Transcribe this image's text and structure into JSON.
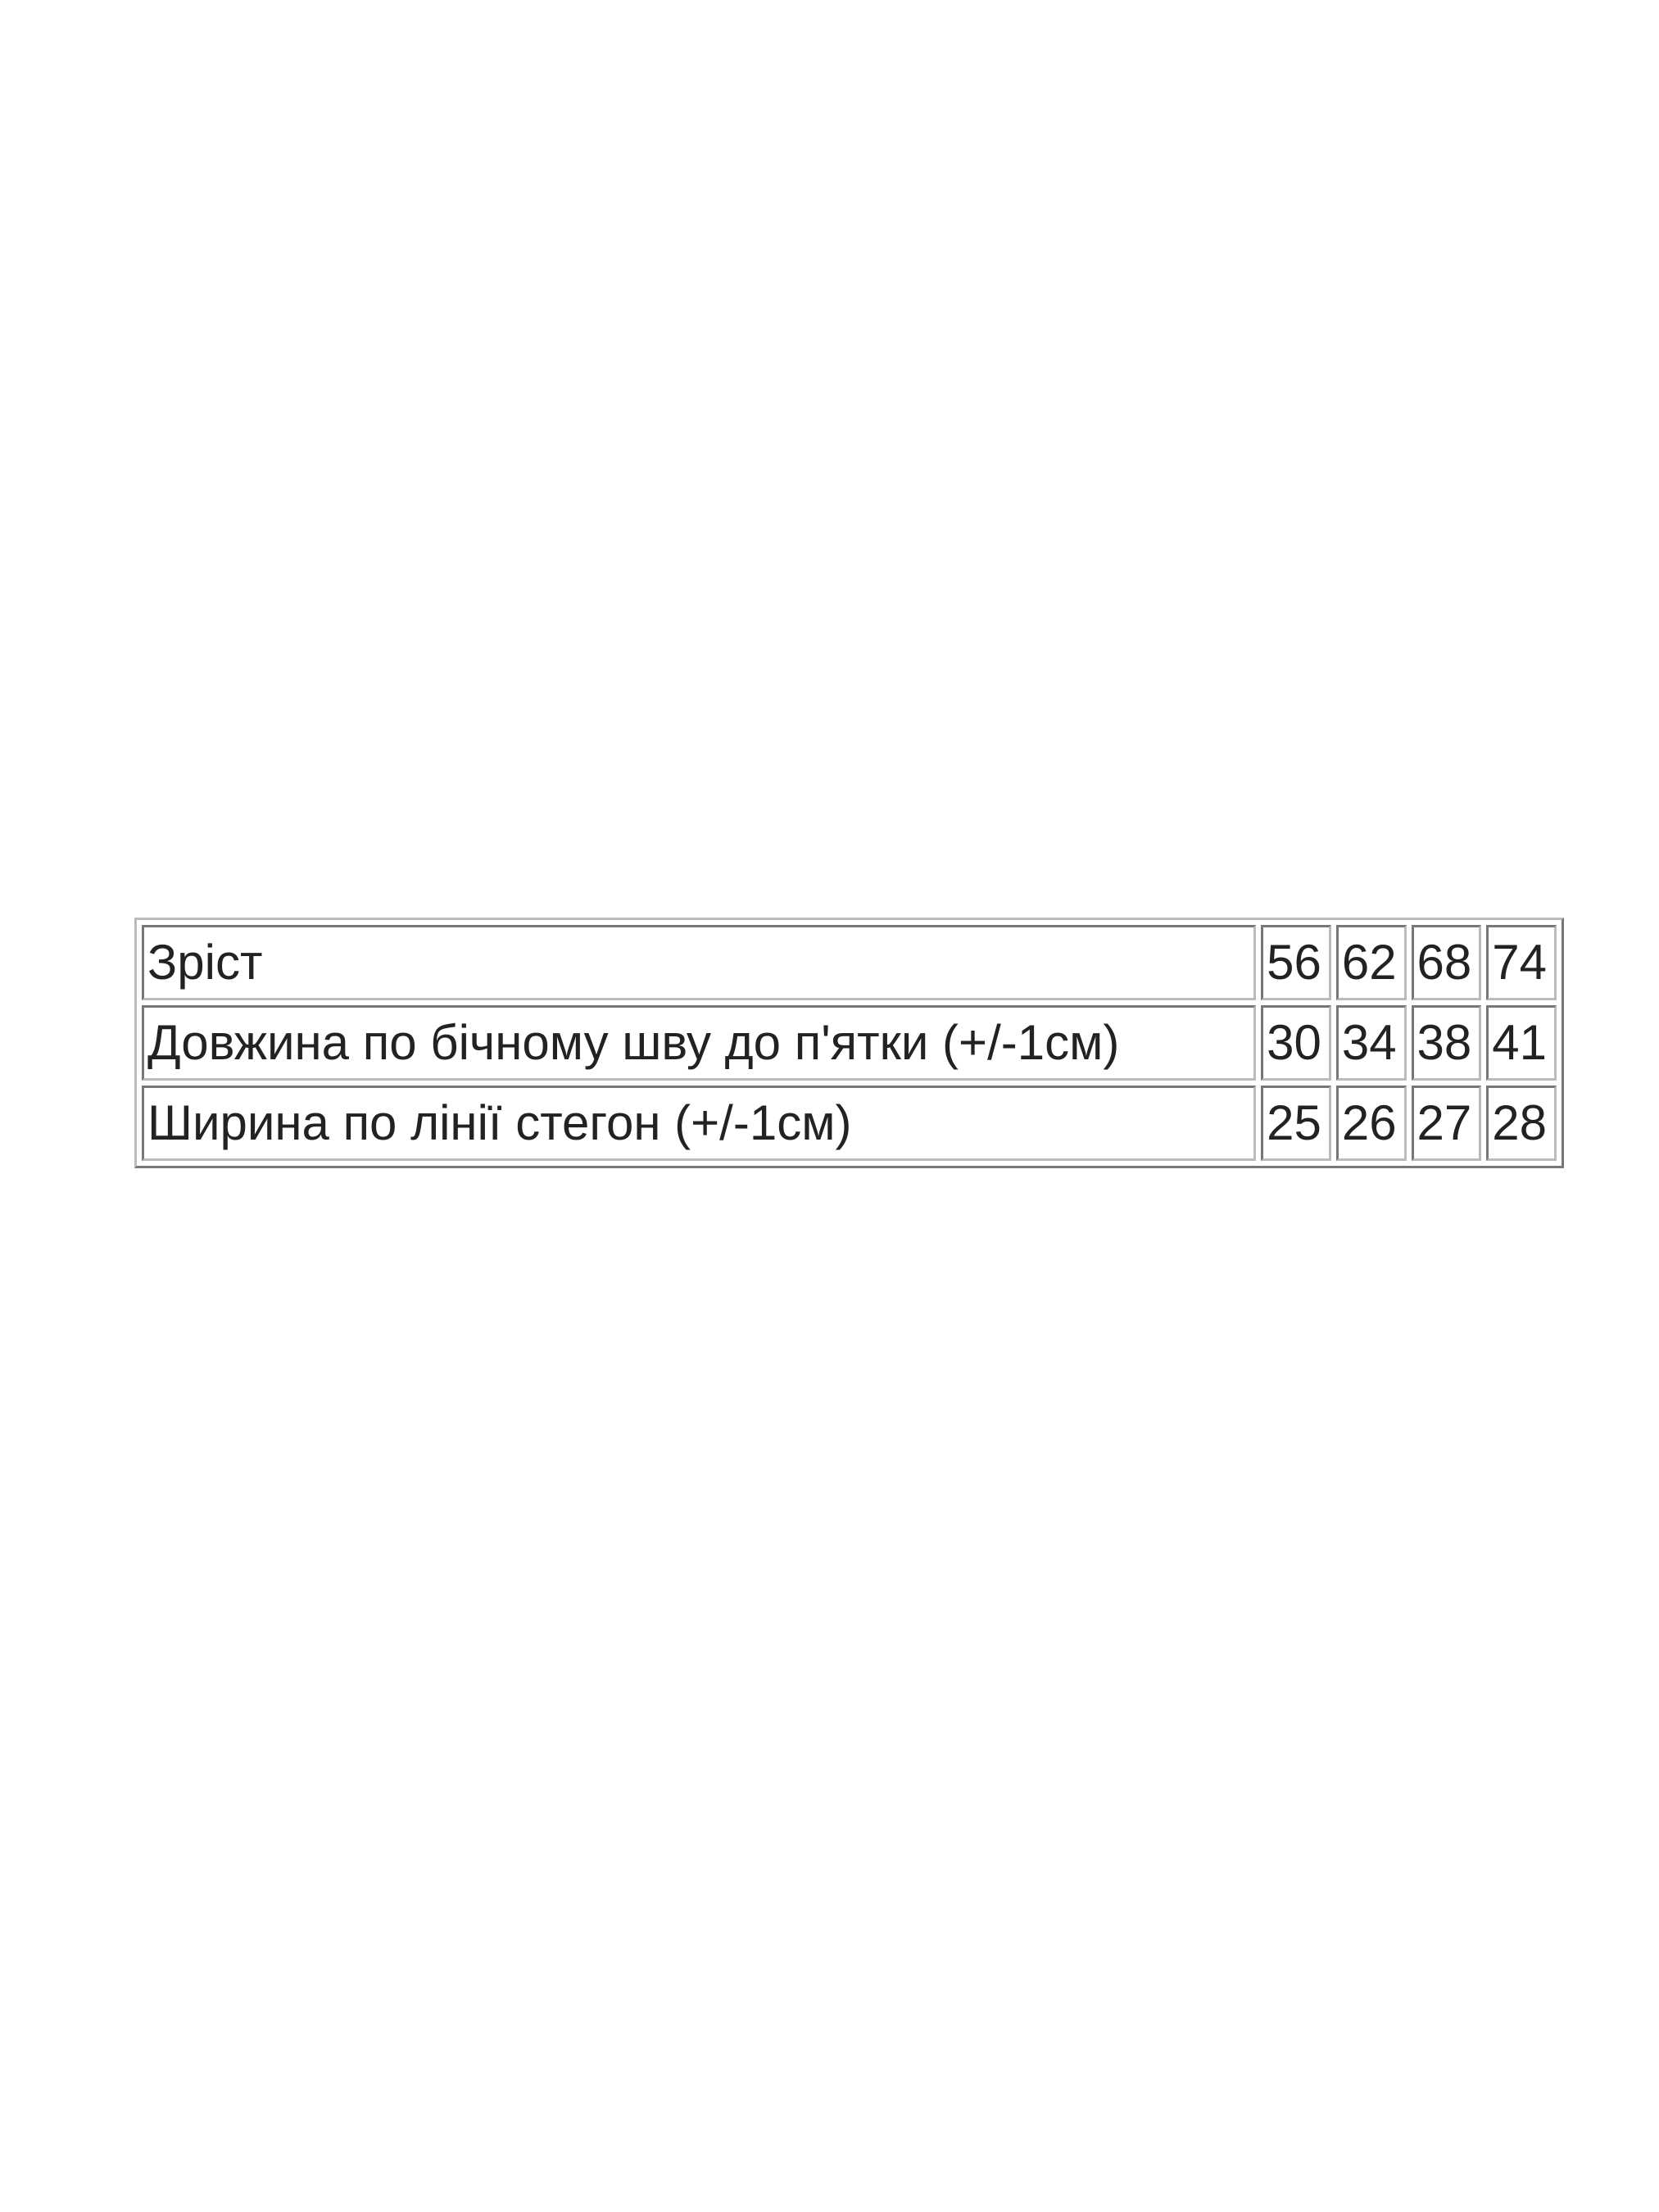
{
  "table": {
    "rows": [
      [
        "Зріст",
        56,
        62,
        68,
        74
      ],
      [
        "Довжина по бічному шву до п'ятки (+/-1см)",
        30,
        34,
        38,
        41
      ],
      [
        "Ширина по лінії стегон (+/-1см)",
        25,
        26,
        27,
        28
      ]
    ]
  }
}
